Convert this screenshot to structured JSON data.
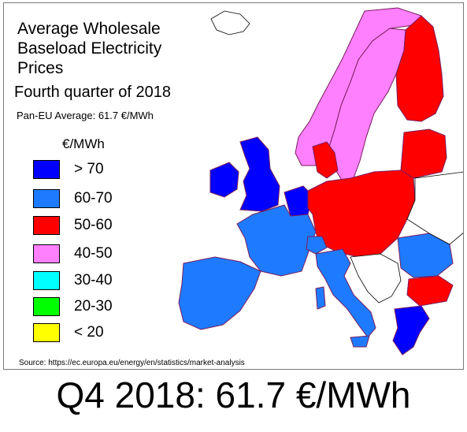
{
  "title_lines": [
    "Average Wholesale",
    "Baseload Electricity",
    "Prices"
  ],
  "subtitle": "Fourth quarter of 2018",
  "average_line": "Pan-EU Average: 61.7 €/MWh",
  "legend": {
    "unit": "€/MWh",
    "items": [
      {
        "label": "> 70",
        "color": "#0000ff"
      },
      {
        "label": "60-70",
        "color": "#1e7bff"
      },
      {
        "label": "50-60",
        "color": "#ff0000"
      },
      {
        "label": "40-50",
        "color": "#ff80ff"
      },
      {
        "label": "30-40",
        "color": "#00ffff"
      },
      {
        "label": "20-30",
        "color": "#00ff00"
      },
      {
        "label": "< 20",
        "color": "#ffff00"
      }
    ]
  },
  "source": "Source: https://ec.europa.eu/energy/en/statistics/market-analysis",
  "footer": "Q4 2018: 61.7 €/MWh",
  "colors": {
    "no_data": "#ffffff",
    "border": "#7a1c5c",
    "outline": "#000000"
  }
}
